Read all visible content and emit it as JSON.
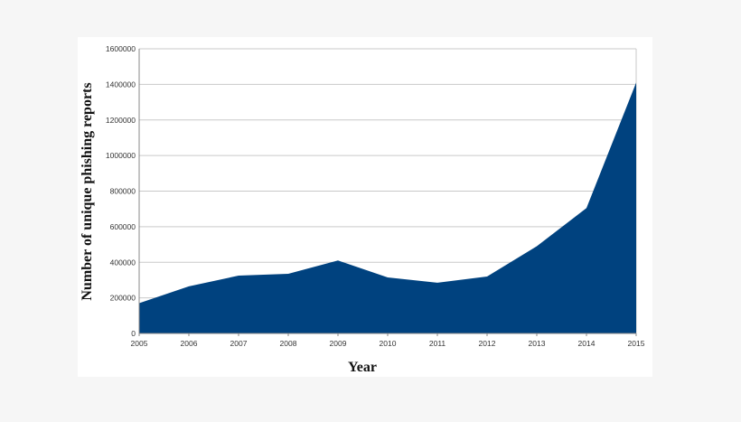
{
  "colors": {
    "page_background": "#f6f6f6",
    "plot_background": "#ffffff",
    "area_fill": "#00427f",
    "gridline": "#c9c9c9"
  },
  "chart_data": {
    "type": "area",
    "title": "",
    "xlabel": "Year",
    "ylabel": "Number of unique phishing reports",
    "x": [
      "2005",
      "2006",
      "2007",
      "2008",
      "2009",
      "2010",
      "2011",
      "2012",
      "2013",
      "2014",
      "2015"
    ],
    "series": [
      {
        "values": [
          170000,
          265000,
          325000,
          335000,
          410000,
          315000,
          285000,
          320000,
          490000,
          705000,
          1410000
        ]
      }
    ],
    "yticks": [
      "0",
      "200000",
      "400000",
      "600000",
      "800000",
      "1000000",
      "1200000",
      "1400000",
      "1600000"
    ],
    "ylim": [
      0,
      1600000
    ],
    "grid": "horizontal",
    "legend": "none"
  }
}
